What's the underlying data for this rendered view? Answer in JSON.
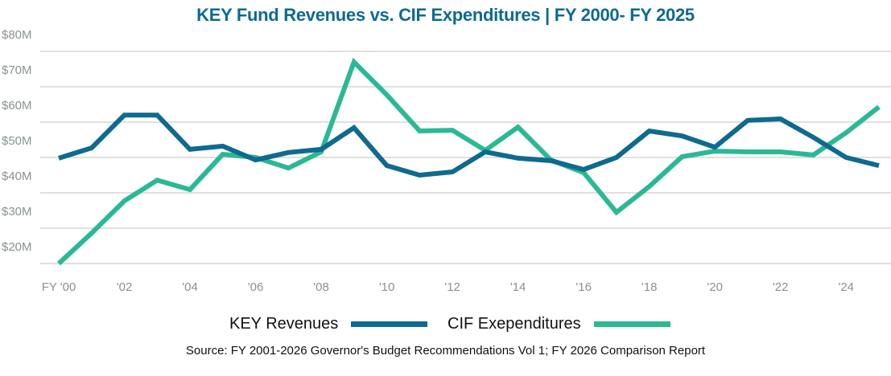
{
  "chart_data": {
    "type": "line",
    "title": "KEY Fund Revenues vs. CIF Expenditures | FY 2000- FY 2025",
    "xlabel": "",
    "ylabel": "",
    "x": [
      2000,
      2001,
      2002,
      2003,
      2004,
      2005,
      2006,
      2007,
      2008,
      2009,
      2010,
      2011,
      2012,
      2013,
      2014,
      2015,
      2016,
      2017,
      2018,
      2019,
      2020,
      2021,
      2022,
      2023,
      2024,
      2025
    ],
    "x_tick_labels": [
      "FY '00",
      "'02",
      "'04",
      "'06",
      "'08",
      "'10",
      "'12",
      "'14",
      "'16",
      "'18",
      "'20",
      "'22",
      "'24"
    ],
    "y_tick_labels": [
      "$80M",
      "$70M",
      "$60M",
      "$50M",
      "$40M",
      "$30M",
      "$20M"
    ],
    "ylim": [
      20,
      80
    ],
    "grid": true,
    "legend_position": "bottom",
    "series": [
      {
        "name": "KEY Revenues",
        "color": "#0e6a8f",
        "values": [
          49.8,
          52.7,
          62,
          62,
          52.3,
          53.2,
          49.3,
          51.4,
          52.3,
          58.4,
          47.7,
          45,
          45.9,
          51.6,
          49.8,
          49.1,
          46.6,
          50,
          57.5,
          56.1,
          52.9,
          60.5,
          60.9,
          55.7,
          50,
          47.7
        ]
      },
      {
        "name": "CIF Exependitures",
        "color": "#2bb895",
        "values": [
          20,
          28.6,
          37.7,
          43.6,
          40.9,
          50.9,
          50,
          47,
          51.6,
          77,
          67.7,
          57.5,
          57.7,
          52,
          58.6,
          49.3,
          45.7,
          34.5,
          41.8,
          50.2,
          51.8,
          51.6,
          51.6,
          50.7,
          57,
          64.3
        ]
      }
    ],
    "source": "Source: FY 2001-2026 Governor's Budget Recommendations Vol 1; FY 2026 Comparison Report"
  }
}
